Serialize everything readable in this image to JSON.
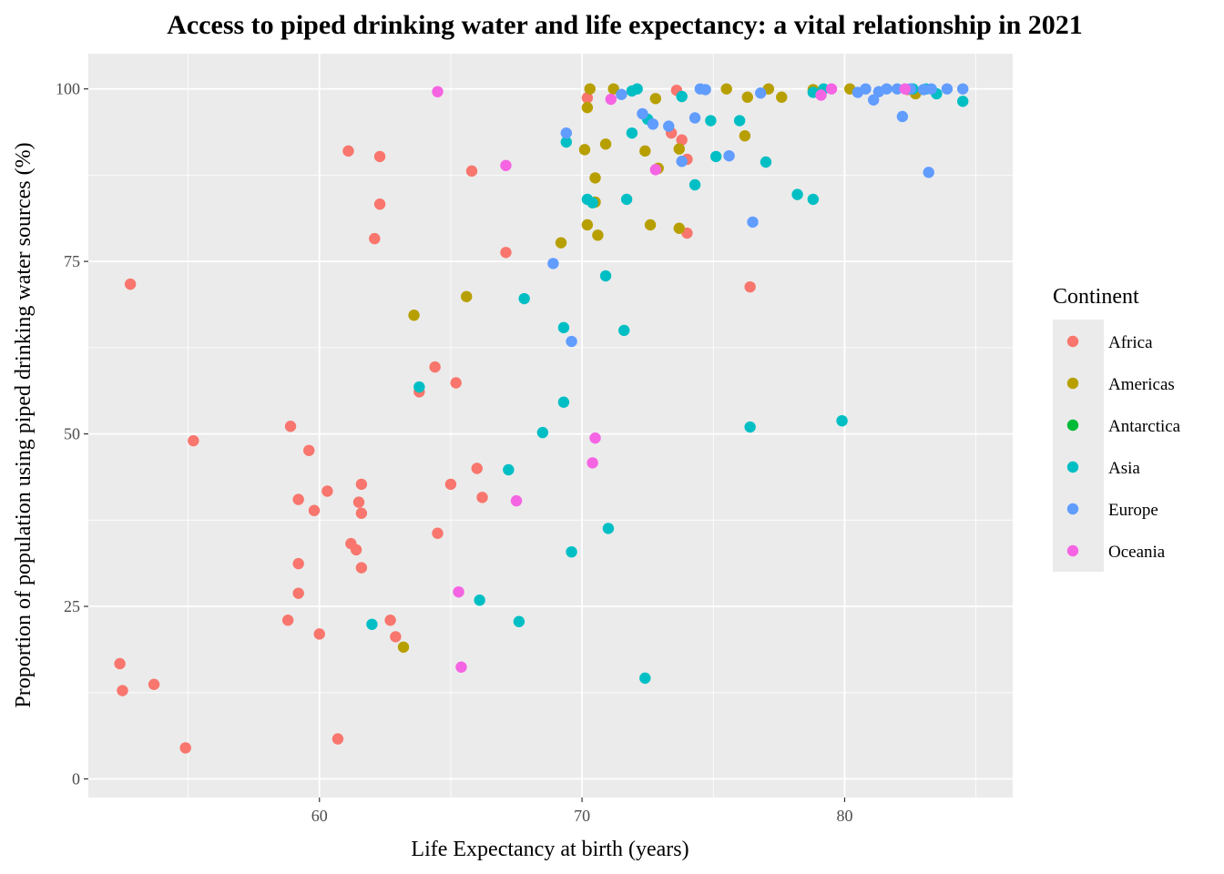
{
  "chart_data": {
    "type": "scatter",
    "title": "Access to piped drinking water and life expectancy: a vital relationship in 2021",
    "xlabel": "Life Expectancy at birth (years)",
    "ylabel": "Proportion of population using piped drinking water sources (%)",
    "xlim": [
      51.2,
      86.4
    ],
    "ylim": [
      -2.7,
      105.1
    ],
    "xticks": [
      60,
      70,
      80
    ],
    "yticks": [
      0,
      25,
      50,
      75,
      100
    ],
    "x_tick_labels": [
      "60",
      "70",
      "80"
    ],
    "y_tick_labels": [
      "0",
      "25",
      "50",
      "75",
      "100"
    ],
    "grid": true,
    "legend_position": "right",
    "legend": {
      "title": "Continent",
      "entries": [
        {
          "name": "Africa",
          "color": "#F8766D"
        },
        {
          "name": "Americas",
          "color": "#B79F00"
        },
        {
          "name": "Antarctica",
          "color": "#00BA38"
        },
        {
          "name": "Asia",
          "color": "#00BFC4"
        },
        {
          "name": "Europe",
          "color": "#619CFF"
        },
        {
          "name": "Oceania",
          "color": "#F564E3"
        }
      ]
    },
    "series": [
      {
        "name": "Africa",
        "color": "#F8766D",
        "points": [
          [
            52.8,
            71.7
          ],
          [
            55.2,
            49.0
          ],
          [
            52.4,
            16.7
          ],
          [
            52.5,
            12.8
          ],
          [
            53.7,
            13.7
          ],
          [
            54.9,
            4.5
          ],
          [
            61.1,
            91.0
          ],
          [
            62.3,
            90.2
          ],
          [
            62.3,
            83.3
          ],
          [
            62.1,
            78.3
          ],
          [
            65.8,
            88.1
          ],
          [
            67.1,
            76.3
          ],
          [
            58.9,
            51.1
          ],
          [
            59.6,
            47.6
          ],
          [
            60.3,
            41.7
          ],
          [
            59.2,
            40.5
          ],
          [
            59.8,
            38.9
          ],
          [
            59.2,
            31.2
          ],
          [
            59.2,
            26.9
          ],
          [
            58.8,
            23.0
          ],
          [
            60.0,
            21.0
          ],
          [
            60.7,
            5.8
          ],
          [
            61.6,
            42.7
          ],
          [
            61.5,
            40.1
          ],
          [
            61.6,
            38.5
          ],
          [
            61.2,
            34.1
          ],
          [
            61.4,
            33.2
          ],
          [
            61.6,
            30.6
          ],
          [
            62.7,
            23.0
          ],
          [
            62.9,
            20.6
          ],
          [
            63.8,
            56.1
          ],
          [
            64.4,
            59.7
          ],
          [
            65.2,
            57.4
          ],
          [
            64.5,
            35.6
          ],
          [
            65.0,
            42.7
          ],
          [
            66.0,
            45.0
          ],
          [
            66.2,
            40.8
          ],
          [
            70.2,
            98.7
          ],
          [
            73.6,
            99.8
          ],
          [
            73.4,
            93.6
          ],
          [
            73.8,
            92.6
          ],
          [
            74.0,
            89.8
          ],
          [
            74.0,
            79.1
          ],
          [
            76.4,
            71.3
          ],
          [
            82.4,
            99.9
          ]
        ]
      },
      {
        "name": "Americas",
        "color": "#B79F00",
        "points": [
          [
            63.6,
            67.2
          ],
          [
            63.2,
            19.1
          ],
          [
            65.6,
            69.9
          ],
          [
            69.2,
            77.7
          ],
          [
            70.1,
            91.2
          ],
          [
            70.2,
            97.3
          ],
          [
            70.3,
            100.0
          ],
          [
            70.9,
            92.0
          ],
          [
            70.5,
            87.1
          ],
          [
            70.5,
            83.6
          ],
          [
            70.2,
            80.3
          ],
          [
            70.6,
            78.8
          ],
          [
            71.2,
            100.0
          ],
          [
            72.4,
            91.0
          ],
          [
            72.8,
            98.6
          ],
          [
            72.9,
            88.5
          ],
          [
            72.6,
            80.3
          ],
          [
            73.7,
            91.3
          ],
          [
            73.7,
            79.8
          ],
          [
            75.5,
            100.0
          ],
          [
            76.3,
            98.8
          ],
          [
            76.2,
            93.2
          ],
          [
            77.1,
            100.0
          ],
          [
            77.6,
            98.8
          ],
          [
            78.8,
            99.9
          ],
          [
            80.2,
            100.0
          ],
          [
            82.7,
            99.3
          ]
        ]
      },
      {
        "name": "Asia",
        "color": "#00BFC4",
        "points": [
          [
            63.8,
            56.8
          ],
          [
            62.0,
            22.4
          ],
          [
            66.1,
            25.9
          ],
          [
            67.2,
            44.8
          ],
          [
            67.6,
            22.8
          ],
          [
            67.8,
            69.6
          ],
          [
            68.5,
            50.2
          ],
          [
            69.3,
            65.4
          ],
          [
            69.3,
            54.6
          ],
          [
            69.6,
            32.9
          ],
          [
            69.4,
            92.3
          ],
          [
            70.2,
            84.0
          ],
          [
            70.4,
            83.5
          ],
          [
            70.9,
            72.9
          ],
          [
            71.0,
            36.3
          ],
          [
            71.6,
            65.0
          ],
          [
            71.7,
            84.0
          ],
          [
            71.9,
            99.7
          ],
          [
            72.1,
            100.0
          ],
          [
            71.9,
            93.6
          ],
          [
            72.4,
            14.6
          ],
          [
            72.5,
            95.6
          ],
          [
            73.8,
            98.9
          ],
          [
            74.3,
            86.1
          ],
          [
            74.9,
            95.4
          ],
          [
            75.1,
            90.2
          ],
          [
            76.0,
            95.4
          ],
          [
            76.4,
            51.0
          ],
          [
            77.0,
            89.4
          ],
          [
            78.2,
            84.7
          ],
          [
            78.8,
            84.0
          ],
          [
            78.8,
            99.5
          ],
          [
            79.2,
            100.0
          ],
          [
            79.9,
            51.9
          ],
          [
            82.6,
            100.0
          ],
          [
            83.1,
            100.0
          ],
          [
            83.5,
            99.3
          ],
          [
            84.5,
            98.2
          ]
        ]
      },
      {
        "name": "Europe",
        "color": "#619CFF",
        "points": [
          [
            68.9,
            74.7
          ],
          [
            69.4,
            93.6
          ],
          [
            69.6,
            63.4
          ],
          [
            71.5,
            99.2
          ],
          [
            72.3,
            96.4
          ],
          [
            72.7,
            94.9
          ],
          [
            73.3,
            94.6
          ],
          [
            73.8,
            89.5
          ],
          [
            74.3,
            95.8
          ],
          [
            74.5,
            100.0
          ],
          [
            74.7,
            99.9
          ],
          [
            75.6,
            90.3
          ],
          [
            76.5,
            80.7
          ],
          [
            76.8,
            99.4
          ],
          [
            80.5,
            99.5
          ],
          [
            80.8,
            100.0
          ],
          [
            81.1,
            98.4
          ],
          [
            81.3,
            99.6
          ],
          [
            81.6,
            100.0
          ],
          [
            82.0,
            100.0
          ],
          [
            82.2,
            96.0
          ],
          [
            82.5,
            100.0
          ],
          [
            83.0,
            99.9
          ],
          [
            83.2,
            87.9
          ],
          [
            83.3,
            100.0
          ],
          [
            83.9,
            100.0
          ],
          [
            84.5,
            100.0
          ]
        ]
      },
      {
        "name": "Oceania",
        "color": "#F564E3",
        "points": [
          [
            64.5,
            99.6
          ],
          [
            67.1,
            88.9
          ],
          [
            67.5,
            40.3
          ],
          [
            65.3,
            27.1
          ],
          [
            65.4,
            16.2
          ],
          [
            70.4,
            45.8
          ],
          [
            70.5,
            49.4
          ],
          [
            71.1,
            98.5
          ],
          [
            72.8,
            88.3
          ],
          [
            79.1,
            99.1
          ],
          [
            79.5,
            100.0
          ],
          [
            82.3,
            100.0
          ]
        ]
      }
    ]
  }
}
